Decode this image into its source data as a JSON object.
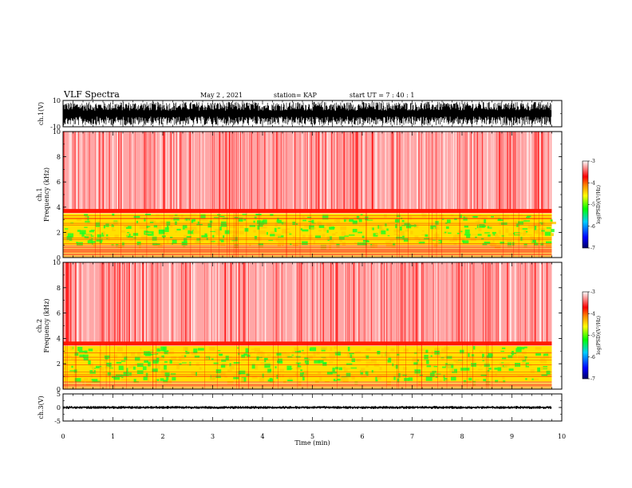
{
  "header": {
    "title": "VLF Spectra",
    "date": "May 2 , 2021",
    "station": "station= KAP",
    "start_time": "start UT = 7 : 40 : 1"
  },
  "chart_data": [
    {
      "id": "ch1-waveform",
      "type": "line",
      "ylabel": "ch.1(V)",
      "ylim": [
        -10,
        10
      ],
      "y_ticks": [
        "10",
        "-10"
      ],
      "xlim": [
        0,
        10
      ],
      "data_extent_min": 9.8,
      "amplitude_range": [
        -9,
        9
      ]
    },
    {
      "id": "ch1-spectrogram",
      "type": "heatmap",
      "ylabel": "ch.1\nFrequency (kHz)",
      "ylim": [
        0,
        10
      ],
      "y_ticks": [
        "0",
        "2",
        "4",
        "6",
        "8",
        "10"
      ],
      "xlim": [
        0,
        10
      ],
      "data_extent_min": 9.8,
      "dominant_band_khz": [
        1.0,
        3.5
      ],
      "band_edge_khz": 3.6,
      "colorbar": {
        "label": "log(PSD)(V²/Hz)",
        "range": [
          -7,
          -3
        ],
        "ticks": [
          "-3",
          "-4",
          "-5",
          "-6",
          "-7"
        ],
        "colors": [
          "#000066",
          "#0000ff",
          "#00ccff",
          "#00ff00",
          "#ffff00",
          "#ff8800",
          "#ff0000",
          "#ffffff"
        ]
      }
    },
    {
      "id": "ch2-spectrogram",
      "type": "heatmap",
      "ylabel": "ch.2\nFrequency (kHz)",
      "ylim": [
        0,
        10
      ],
      "y_ticks": [
        "0",
        "2",
        "4",
        "6",
        "8",
        "10"
      ],
      "xlim": [
        0,
        10
      ],
      "data_extent_min": 9.8,
      "dominant_band_khz": [
        0.6,
        3.4
      ],
      "band_edge_khz": 3.5,
      "colorbar": {
        "label": "log(PSD)(V²/Hz)",
        "range": [
          -7,
          -3
        ],
        "ticks": [
          "-3",
          "-4",
          "-5",
          "-6",
          "-7"
        ],
        "colors": [
          "#000066",
          "#0000ff",
          "#00ccff",
          "#00ff00",
          "#ffff00",
          "#ff8800",
          "#ff0000",
          "#ffffff"
        ]
      }
    },
    {
      "id": "ch3-waveform",
      "type": "line",
      "ylabel": "ch.3(V)",
      "ylim": [
        -5,
        5
      ],
      "y_ticks": [
        "5",
        "0",
        "-5"
      ],
      "xlim": [
        0,
        10
      ],
      "data_extent_min": 9.8,
      "amplitude_range": [
        -0.6,
        0.6
      ],
      "xlabel": "Time (min)",
      "x_ticks": [
        "0",
        "1",
        "2",
        "3",
        "4",
        "5",
        "6",
        "7",
        "8",
        "9",
        "10"
      ]
    }
  ]
}
